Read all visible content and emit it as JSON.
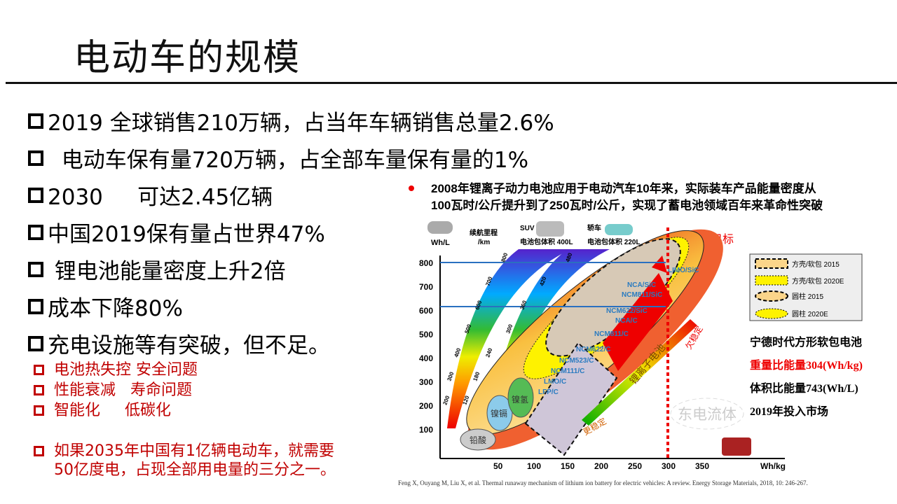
{
  "title": "电动车的规模",
  "bullets": [
    "2019 全球销售210万辆，占当年车辆销售总量2.6%",
    "  电动车保有量720万辆，占全部车量保有量的1%",
    "2030     可达2.45亿辆",
    "中国2019保有量占世界47%",
    " 锂电池能量密度上升2倍",
    "成本下降80%",
    "充电设施等有突破，但不足。"
  ],
  "sub_bullets": [
    "电池热失控 安全问题",
    "性能衰减   寿命问题",
    "智能化     低碳化"
  ],
  "note": [
    "如果2035年中国有1亿辆电动车，就需要",
    "50亿度电，占现全部用电量的三分之一。"
  ],
  "figure": {
    "headline": [
      "2008年锂离子动力电池应用于电动汽车10年来，实际装车产品能量密度从",
      "100瓦时/公斤提升到了250瓦时/公斤，实现了蓄电池领域百年来革命性突破"
    ],
    "wh_l": "Wh/L",
    "range_label": [
      "续航里程",
      "/km"
    ],
    "suv": "SUV",
    "suv_pack": "电池包体积 400L",
    "sedan": "轿车",
    "sedan_pack": "电池包体积 220L",
    "target": "2020 目标",
    "watermark": "东电流体",
    "y_ticks": [
      "800",
      "700",
      "600",
      "500",
      "400",
      "300",
      "200",
      "100"
    ],
    "x_ticks": [
      "50",
      "100",
      "150",
      "200",
      "250",
      "300",
      "350"
    ],
    "x_unit": "Wh/kg",
    "band1_ticks": [
      "800",
      "700",
      "600",
      "500",
      "400",
      "300",
      "200"
    ],
    "band2_ticks": [
      "480",
      "420",
      "360",
      "300",
      "240",
      "180",
      "120"
    ],
    "chemistries": [
      "LIMO/SiC",
      "NCA/SiC",
      "NCM811/SiC",
      "NCM622/SiC",
      "NCA/C",
      "NCM811/C",
      "NCM622/C",
      "NCM523/C",
      "NCM111/C",
      "LMO/C",
      "LFP/C"
    ],
    "year_marks": [
      "2015",
      "2020",
      "2015",
      "2020"
    ],
    "other_batteries": [
      "铅酸",
      "镍镉",
      "镍氢"
    ],
    "li_ion": "锂离子电池",
    "more_stable": "更稳定",
    "less_stable": "欠稳定",
    "legend": [
      "方壳/软包  2015",
      "方壳/软包  2020E",
      "圆柱 2015",
      "圆柱 2020E"
    ],
    "catl": [
      "宁德时代方形软包电池",
      "重量比能量304(Wh/kg)",
      "体积比能量743(Wh/L)",
      "2019年投入市场"
    ],
    "citation": "Feng X, Ouyang M, Liu X, et al. Thermal runaway mechanism of lithium ion battery for electric vehicles: A review. Energy Storage Materials, 2018, 10: 246-267."
  }
}
